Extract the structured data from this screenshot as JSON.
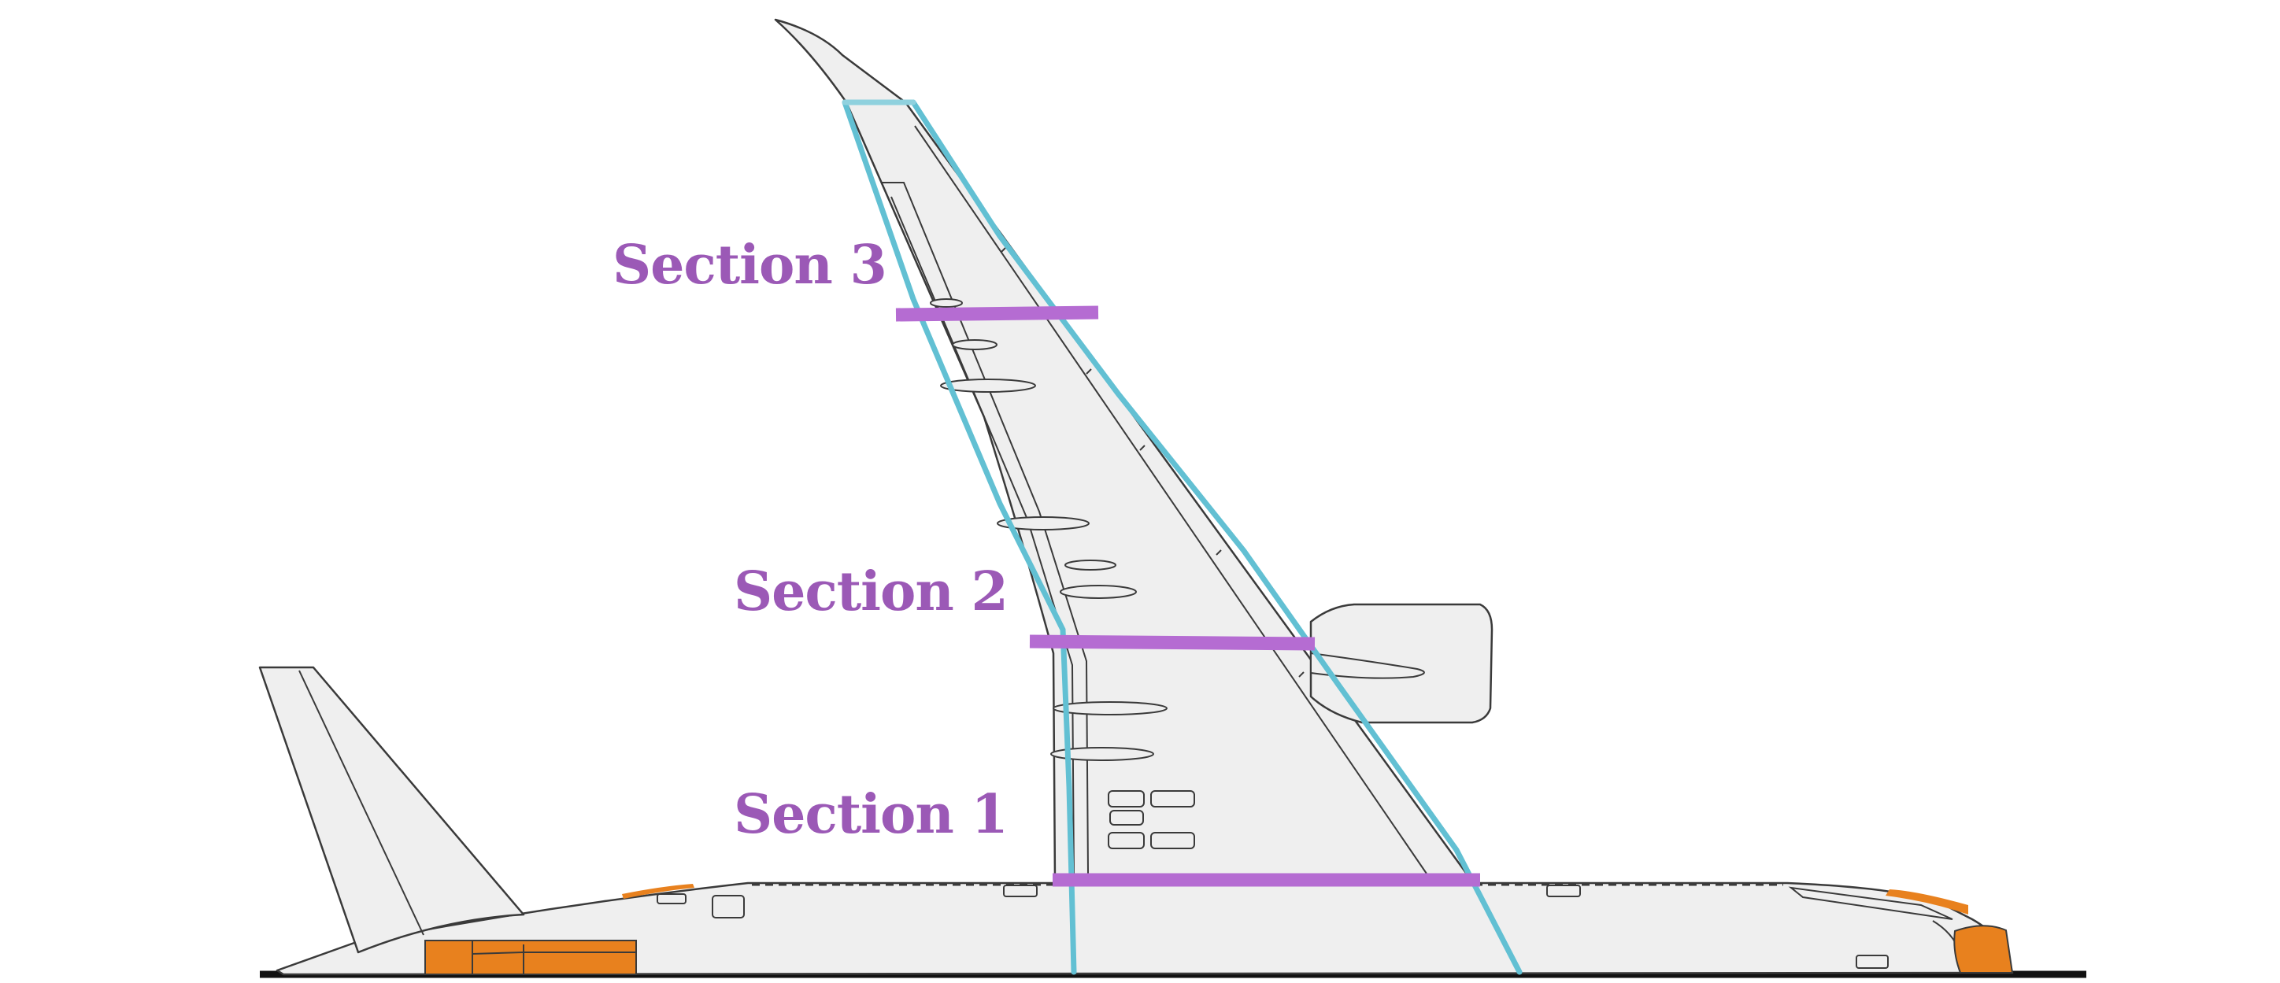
{
  "sections": [
    {
      "id": "section-3",
      "label": "Section 3"
    },
    {
      "id": "section-2",
      "label": "Section 2"
    },
    {
      "id": "section-1",
      "label": "Section 1"
    }
  ],
  "colors": {
    "section_line": "#b56cd2",
    "section_text": "#9b59b6",
    "spar_line": "#62c0d3",
    "highlight": "#e8811e",
    "airframe_fill": "#efefef",
    "airframe_stroke": "#3a3a3a",
    "ground": "#111111"
  }
}
